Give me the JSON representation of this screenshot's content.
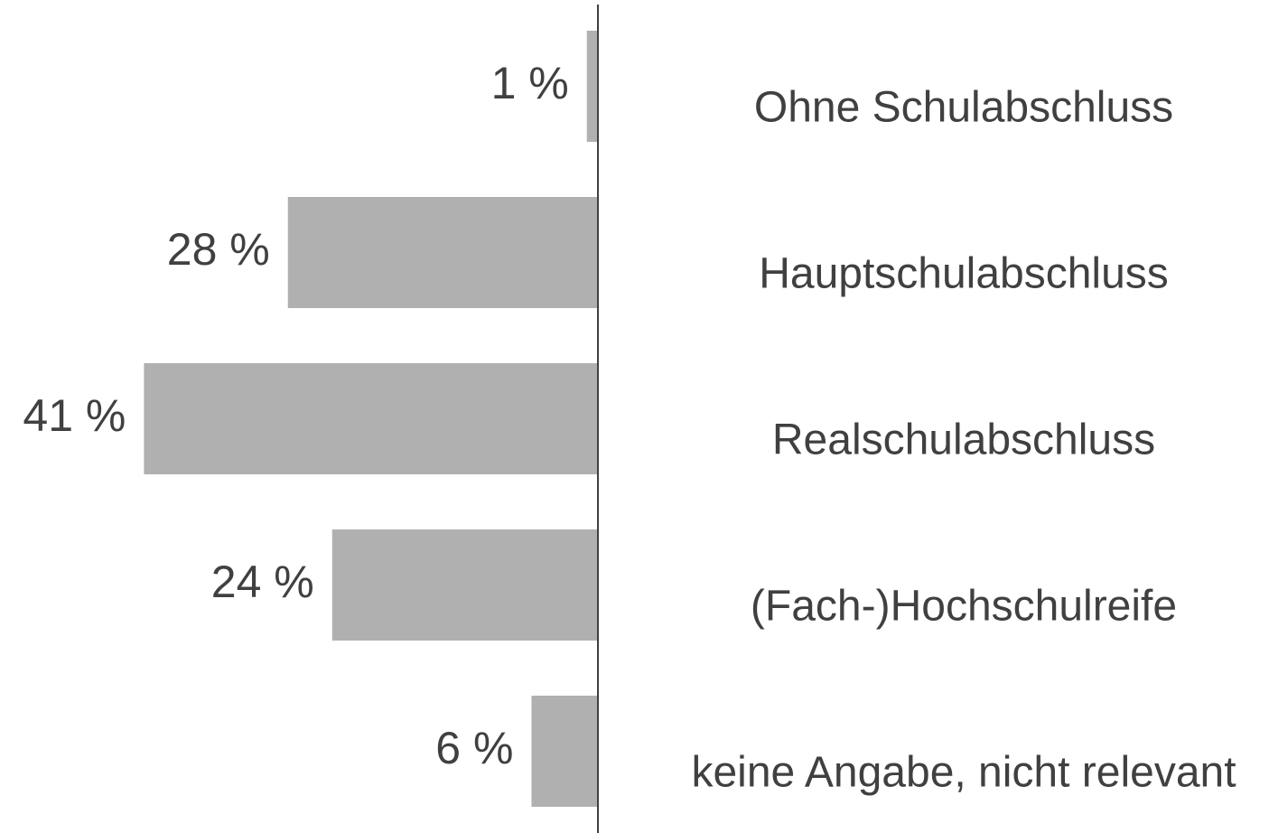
{
  "chart_data": {
    "type": "hbar_left",
    "categories": [
      "Ohne Schulabschluss",
      "Hauptschulabschluss",
      "Realschulabschluss",
      "(Fach-)Hochschulreife",
      "keine Angabe, nicht relevant"
    ],
    "values": [
      1,
      28,
      41,
      24,
      6
    ],
    "value_labels": [
      "1 %",
      "28 %",
      "41 %",
      "24 %",
      "6 %"
    ],
    "color": "#b0b0b0",
    "xlim": [
      0,
      54
    ]
  }
}
